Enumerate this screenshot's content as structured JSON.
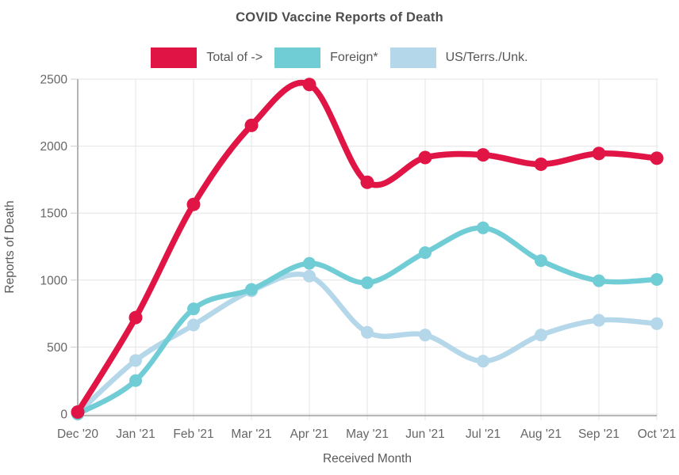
{
  "chart": {
    "title": "COVID Vaccine Reports of Death",
    "xlabel": "Received Month",
    "ylabel": "Reports of Death"
  },
  "chart_data": {
    "type": "line",
    "title": "COVID Vaccine Reports of Death",
    "xlabel": "Received Month",
    "ylabel": "Reports of Death",
    "categories": [
      "Dec '20",
      "Jan '21",
      "Feb '21",
      "Mar '21",
      "Apr '21",
      "May '21",
      "Jun '21",
      "Jul '21",
      "Aug '21",
      "Sep '21",
      "Oct '21"
    ],
    "series": [
      {
        "name": "Total of ->",
        "color": "#e01545",
        "line_width": 7.5,
        "point_radius": 8.5,
        "values": [
          15,
          720,
          1565,
          2155,
          2460,
          1730,
          1915,
          1935,
          1865,
          1945,
          1910
        ]
      },
      {
        "name": "Foreign*",
        "color": "#70ccd5",
        "line_width": 6.5,
        "point_radius": 8,
        "values": [
          0,
          250,
          785,
          930,
          1125,
          980,
          1205,
          1390,
          1145,
          995,
          1005
        ]
      },
      {
        "name": "US/Terrs./Unk.",
        "color": "#b5d7ea",
        "line_width": 6.5,
        "point_radius": 8,
        "values": [
          5,
          400,
          665,
          920,
          1030,
          610,
          590,
          395,
          590,
          700,
          675
        ]
      }
    ],
    "draw_order": [
      "US/Terrs./Unk.",
      "Foreign*",
      "Total of ->"
    ],
    "ylim": [
      0,
      2500
    ],
    "yticks": [
      0,
      500,
      1000,
      1500,
      2000,
      2500
    ],
    "grid": true,
    "legend_position": "top",
    "colors": {
      "grid_line": "#e4e4e4",
      "axis_line": "#8c8c8c",
      "tick_mark": "#cccccc",
      "tick_label": "#666666",
      "title_text": "#4d4d4d"
    }
  }
}
